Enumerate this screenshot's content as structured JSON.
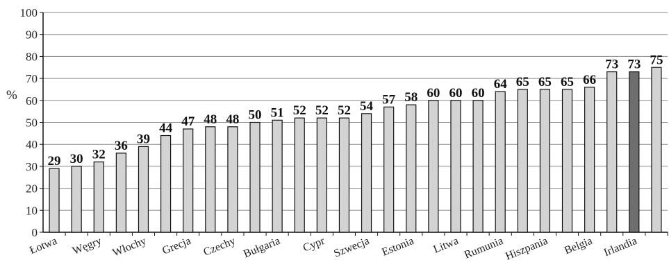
{
  "chart_data": {
    "type": "bar",
    "ylabel": "%",
    "ylim": [
      0,
      100
    ],
    "yticks": [
      0,
      10,
      20,
      30,
      40,
      50,
      60,
      70,
      80,
      90,
      100
    ],
    "grid": true,
    "bars": [
      {
        "label": "Łotwa",
        "value": 29
      },
      {
        "label": "",
        "value": 30
      },
      {
        "label": "Węgry",
        "value": 32
      },
      {
        "label": "",
        "value": 36
      },
      {
        "label": "Włochy",
        "value": 39
      },
      {
        "label": "",
        "value": 44
      },
      {
        "label": "Grecja",
        "value": 47
      },
      {
        "label": "",
        "value": 48
      },
      {
        "label": "Czechy",
        "value": 48
      },
      {
        "label": "",
        "value": 50
      },
      {
        "label": "Bułgaria",
        "value": 51
      },
      {
        "label": "",
        "value": 52
      },
      {
        "label": "Cypr",
        "value": 52
      },
      {
        "label": "",
        "value": 52
      },
      {
        "label": "Szwecja",
        "value": 54
      },
      {
        "label": "",
        "value": 57
      },
      {
        "label": "Estonia",
        "value": 58
      },
      {
        "label": "",
        "value": 60
      },
      {
        "label": "Litwa",
        "value": 60
      },
      {
        "label": "",
        "value": 60
      },
      {
        "label": "Rumunia",
        "value": 64
      },
      {
        "label": "",
        "value": 65
      },
      {
        "label": "Hiszpania",
        "value": 65
      },
      {
        "label": "",
        "value": 65
      },
      {
        "label": "Belgia",
        "value": 66
      },
      {
        "label": "",
        "value": 73
      },
      {
        "label": "Irlandia",
        "value": 73
      },
      {
        "label": "",
        "value": 75
      }
    ],
    "highlighted_index": 26,
    "colors": {
      "bar": "#d3d3d3",
      "bar_highlight": "#6e6e6e",
      "bar_stroke": "#111111",
      "grid": "#8a8a8a"
    }
  }
}
